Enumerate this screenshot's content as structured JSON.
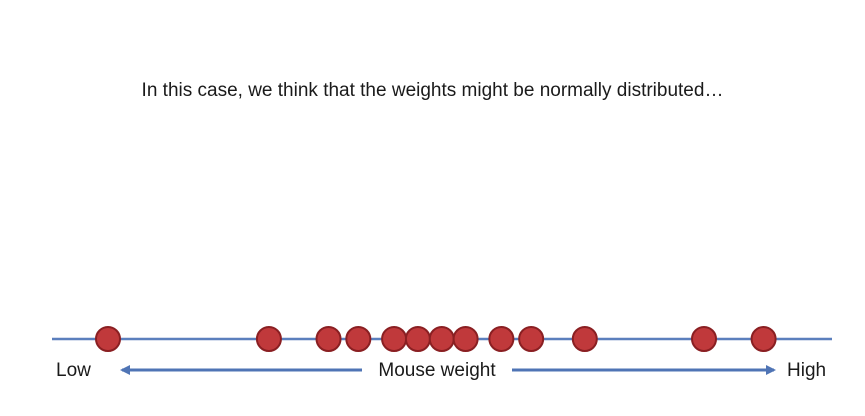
{
  "caption": "In this case, we think that the weights might be normally distributed…",
  "axis": {
    "low_label": "Low",
    "high_label": "High",
    "center_label": "Mouse weight"
  },
  "colors": {
    "axis_line": "#5b7fbd",
    "point_fill": "#c0393b",
    "point_stroke": "#8a1f22",
    "arrow": "#4f74b5"
  },
  "points": [
    0.0,
    0.27,
    0.37,
    0.42,
    0.48,
    0.52,
    0.56,
    0.6,
    0.66,
    0.71,
    0.8,
    1.0,
    1.1
  ]
}
